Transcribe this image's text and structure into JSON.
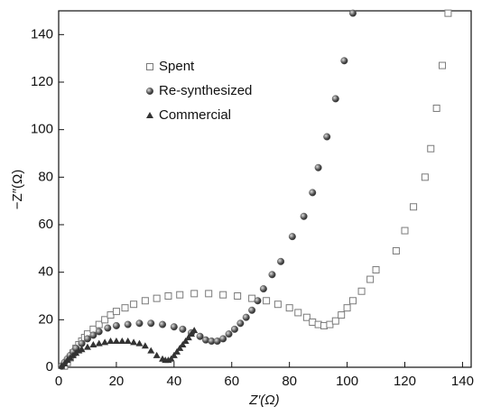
{
  "chart_data": {
    "type": "scatter",
    "x_label": "Z′(Ω)",
    "y_label": "−Z″(Ω)",
    "xlim": [
      0,
      143
    ],
    "ylim": [
      0,
      150
    ],
    "xticks": [
      0,
      20,
      40,
      60,
      80,
      100,
      120,
      140
    ],
    "yticks": [
      0,
      20,
      40,
      60,
      80,
      100,
      120,
      140
    ],
    "legend": "upper left",
    "series": [
      {
        "name": "Spent",
        "color": "#7a7a7a",
        "marker": "square",
        "x": [
          2,
          3,
          4,
          5,
          6,
          7,
          8,
          9,
          10,
          12,
          14,
          16,
          18,
          20,
          23,
          26,
          30,
          34,
          38,
          42,
          47,
          52,
          57,
          62,
          67,
          72,
          76,
          80,
          83,
          86,
          88,
          90,
          92,
          94,
          96,
          98,
          100,
          102,
          105,
          108,
          110,
          117,
          120,
          123,
          127,
          129,
          131,
          133,
          135
        ],
        "values": [
          0.5,
          2,
          4,
          6,
          8,
          9.5,
          11,
          12.5,
          14,
          16,
          18,
          20,
          22,
          23.5,
          25,
          26.5,
          28,
          29,
          30,
          30.5,
          31,
          31,
          30.5,
          30,
          29,
          28,
          26.5,
          25,
          23,
          21,
          19,
          18,
          17.5,
          18,
          19.5,
          22,
          25,
          28,
          32,
          37,
          41,
          49,
          57.5,
          67.5,
          80,
          92,
          109,
          127,
          149
        ]
      },
      {
        "name": "Re-synthesized",
        "color": "#555555",
        "marker": "circle",
        "x": [
          1,
          2,
          3,
          4,
          5,
          6,
          8,
          10,
          12,
          14,
          17,
          20,
          24,
          28,
          32,
          36,
          40,
          43,
          46,
          49,
          51,
          53,
          55,
          57,
          59,
          61,
          63,
          65,
          67,
          69,
          71,
          74,
          77,
          81,
          85,
          88,
          90,
          93,
          96,
          99,
          102
        ],
        "values": [
          0.5,
          2,
          3.5,
          5,
          6.5,
          8,
          10,
          12,
          13.5,
          15,
          16.5,
          17.5,
          18,
          18.5,
          18.5,
          18,
          17,
          16,
          14.5,
          13,
          11.5,
          11,
          11,
          12,
          14,
          16,
          18.5,
          21,
          24,
          28,
          33,
          39,
          44.5,
          55,
          63.5,
          73.5,
          84,
          97,
          113,
          129,
          149
        ]
      },
      {
        "name": "Commercial",
        "color": "#333333",
        "marker": "triangle",
        "x": [
          1,
          2,
          3,
          4,
          5,
          6,
          7,
          8,
          10,
          12,
          14,
          16,
          18,
          20,
          22,
          24,
          26,
          28,
          30,
          32,
          34,
          36,
          37,
          38,
          39,
          40,
          41,
          42,
          43,
          44,
          45,
          46,
          47
        ],
        "values": [
          0.5,
          1.5,
          3,
          4,
          5,
          6,
          7,
          7.5,
          8.5,
          9.5,
          10,
          10.5,
          11,
          11,
          11,
          11,
          10.5,
          10,
          9,
          7,
          5,
          3.5,
          3,
          3,
          3.5,
          5,
          6.5,
          8,
          9.5,
          11,
          12.5,
          14,
          15.5
        ]
      }
    ]
  }
}
